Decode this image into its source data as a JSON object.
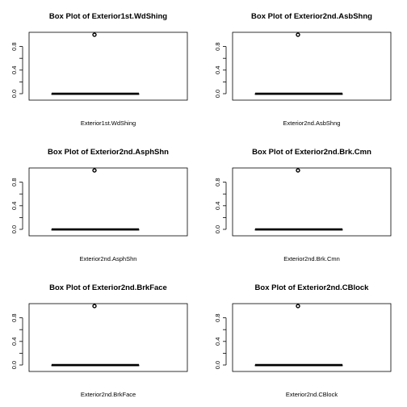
{
  "chart_data": [
    {
      "type": "box",
      "title": "Box Plot of  Exterior1st.WdShing",
      "xlabel": "Exterior1st.WdShing",
      "ylim": [
        0,
        1
      ],
      "yticks": [
        "0.0",
        "0.4",
        "0.8"
      ],
      "box": {
        "min": 0,
        "q1": 0,
        "median": 0,
        "q3": 0,
        "max": 0
      },
      "outliers": [
        1
      ]
    },
    {
      "type": "box",
      "title": "Box Plot of  Exterior2nd.AsbShng",
      "xlabel": "Exterior2nd.AsbShng",
      "ylim": [
        0,
        1
      ],
      "yticks": [
        "0.0",
        "0.4",
        "0.8"
      ],
      "box": {
        "min": 0,
        "q1": 0,
        "median": 0,
        "q3": 0,
        "max": 0
      },
      "outliers": [
        1
      ]
    },
    {
      "type": "box",
      "title": "Box Plot of  Exterior2nd.AsphShn",
      "xlabel": "Exterior2nd.AsphShn",
      "ylim": [
        0,
        1
      ],
      "yticks": [
        "0.0",
        "0.4",
        "0.8"
      ],
      "box": {
        "min": 0,
        "q1": 0,
        "median": 0,
        "q3": 0,
        "max": 0
      },
      "outliers": [
        1
      ]
    },
    {
      "type": "box",
      "title": "Box Plot of  Exterior2nd.Brk.Cmn",
      "xlabel": "Exterior2nd.Brk.Cmn",
      "ylim": [
        0,
        1
      ],
      "yticks": [
        "0.0",
        "0.4",
        "0.8"
      ],
      "box": {
        "min": 0,
        "q1": 0,
        "median": 0,
        "q3": 0,
        "max": 0
      },
      "outliers": [
        1
      ]
    },
    {
      "type": "box",
      "title": "Box Plot of  Exterior2nd.BrkFace",
      "xlabel": "Exterior2nd.BrkFace",
      "ylim": [
        0,
        1
      ],
      "yticks": [
        "0.0",
        "0.4",
        "0.8"
      ],
      "box": {
        "min": 0,
        "q1": 0,
        "median": 0,
        "q3": 0,
        "max": 0
      },
      "outliers": [
        1
      ]
    },
    {
      "type": "box",
      "title": "Box Plot of  Exterior2nd.CBlock",
      "xlabel": "Exterior2nd.CBlock",
      "ylim": [
        0,
        1
      ],
      "yticks": [
        "0.0",
        "0.4",
        "0.8"
      ],
      "box": {
        "min": 0,
        "q1": 0,
        "median": 0,
        "q3": 0,
        "max": 0
      },
      "outliers": [
        1
      ]
    }
  ]
}
